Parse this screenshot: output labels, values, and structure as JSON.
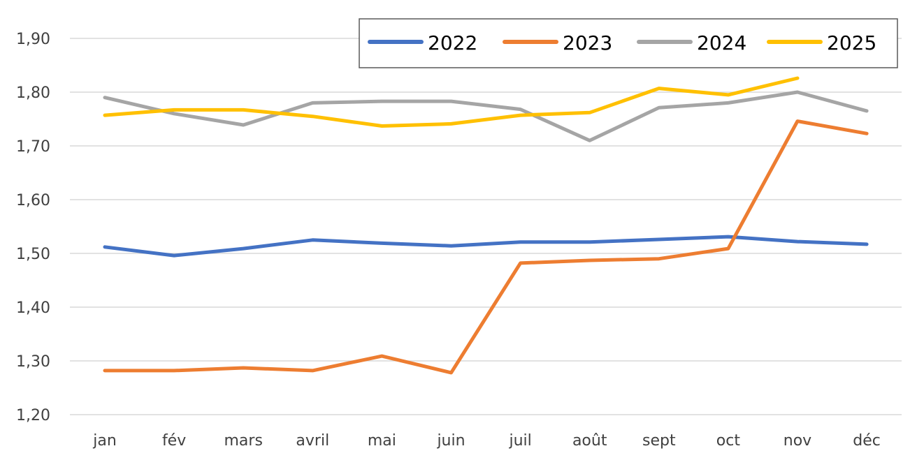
{
  "chart_data": {
    "type": "line",
    "title": "",
    "xlabel": "",
    "ylabel": "",
    "ylim": [
      1.2,
      1.9
    ],
    "yticks": [
      "1,20",
      "1,30",
      "1,40",
      "1,50",
      "1,60",
      "1,70",
      "1,80",
      "1,90"
    ],
    "grid": true,
    "legend_position": "top-right",
    "categories": [
      "jan",
      "fév",
      "mars",
      "avril",
      "mai",
      "juin",
      "juil",
      "août",
      "sept",
      "oct",
      "nov",
      "déc"
    ],
    "series": [
      {
        "name": "2022",
        "color": "#4472C4",
        "values": [
          1.512,
          1.496,
          1.509,
          1.525,
          1.519,
          1.514,
          1.521,
          1.521,
          1.526,
          1.531,
          1.522,
          1.517
        ]
      },
      {
        "name": "2023",
        "color": "#ED7D31",
        "values": [
          1.282,
          1.282,
          1.287,
          1.282,
          1.309,
          1.278,
          1.482,
          1.487,
          1.49,
          1.509,
          1.746,
          1.723
        ]
      },
      {
        "name": "2024",
        "color": "#A5A5A5",
        "values": [
          1.79,
          1.76,
          1.739,
          1.78,
          1.783,
          1.783,
          1.768,
          1.71,
          1.771,
          1.78,
          1.8,
          1.765
        ]
      },
      {
        "name": "2025",
        "color": "#FFC000",
        "values": [
          1.757,
          1.767,
          1.767,
          1.755,
          1.737,
          1.741,
          1.757,
          1.762,
          1.807,
          1.795,
          1.826,
          null
        ]
      }
    ]
  },
  "legend": {
    "items": [
      {
        "label": "2022",
        "color": "#4472C4"
      },
      {
        "label": "2023",
        "color": "#ED7D31"
      },
      {
        "label": "2024",
        "color": "#A5A5A5"
      },
      {
        "label": "2025",
        "color": "#FFC000"
      }
    ]
  }
}
